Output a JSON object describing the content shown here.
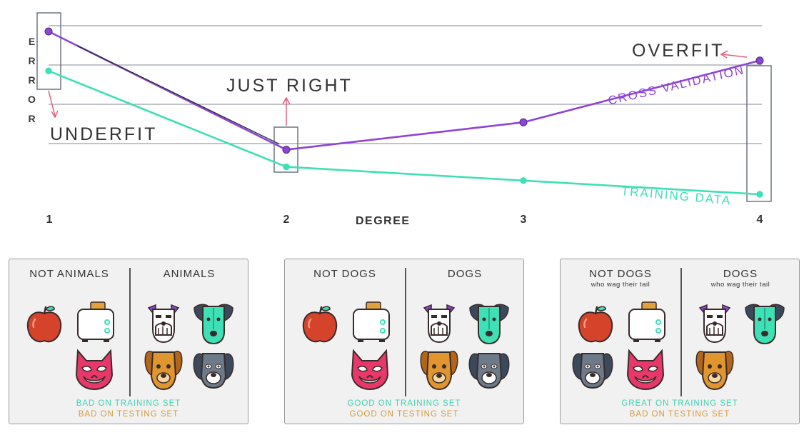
{
  "chart_data": {
    "type": "line",
    "title": "",
    "xlabel": "DEGREE",
    "ylabel": "ERROR",
    "x": [
      1,
      2,
      3,
      4
    ],
    "categories": [
      "1",
      "2",
      "3",
      "4"
    ],
    "ylim": [
      0,
      1
    ],
    "grid": true,
    "series": [
      {
        "name": "CROSS VALIDATION",
        "color": "#8e44d6",
        "values": [
          0.95,
          0.26,
          0.42,
          0.78
        ]
      },
      {
        "name": "TRAINING DATA",
        "color": "#3ee0b5",
        "values": [
          0.72,
          0.16,
          0.08,
          0.0
        ]
      }
    ],
    "annotations": [
      "UNDERFIT",
      "JUST RIGHT",
      "OVERFIT"
    ]
  },
  "colors": {
    "validation": "#8e44d6",
    "training": "#3ee0b5",
    "arrow": "#e85a7e",
    "result_training": "#3fd4b0",
    "result_testing": "#d79a3a",
    "grid": "#9aa0ab",
    "box": "#6c7585"
  },
  "panels": [
    {
      "left_head": "NOT ANIMALS",
      "left_sub": "",
      "right_head": "ANIMALS",
      "right_sub": "",
      "result_training": "BAD ON TRAINING SET",
      "result_testing": "BAD ON TESTING SET",
      "left_icons": [
        "apple-icon",
        "toaster-icon",
        "grumpy-cat-icon"
      ],
      "right_icons": [
        "schnauzer-dog-icon",
        "teal-dog-icon",
        "orange-dog-icon",
        "gray-dog-icon"
      ]
    },
    {
      "left_head": "NOT DOGS",
      "left_sub": "",
      "right_head": "DOGS",
      "right_sub": "",
      "result_training": "GOOD ON TRAINING SET",
      "result_testing": "GOOD ON TESTING SET",
      "left_icons": [
        "apple-icon",
        "toaster-icon",
        "grumpy-cat-icon"
      ],
      "right_icons": [
        "schnauzer-dog-icon",
        "teal-dog-icon",
        "orange-dog-icon",
        "gray-dog-icon"
      ]
    },
    {
      "left_head": "NOT DOGS",
      "left_sub": "who wag their tail",
      "right_head": "DOGS",
      "right_sub": "who wag their tail",
      "result_training": "GREAT ON TRAINING SET",
      "result_testing": "BAD ON TESTING SET",
      "left_icons": [
        "apple-icon",
        "toaster-icon",
        "gray-dog-icon",
        "grumpy-cat-icon"
      ],
      "right_icons": [
        "schnauzer-dog-icon",
        "teal-dog-icon",
        "orange-dog-icon"
      ]
    }
  ]
}
